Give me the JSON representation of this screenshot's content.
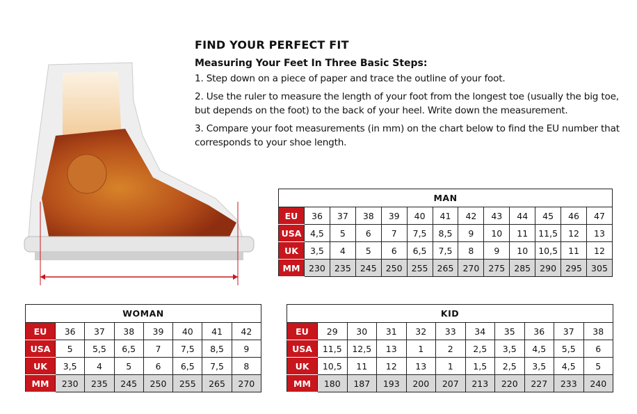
{
  "title": "FIND YOUR PERFECT FIT",
  "subtitle": "Measuring Your Feet In Three Basic Steps:",
  "steps": [
    "1. Step down on a piece of paper and trace the outline of your foot.",
    "2. Use the ruler to measure the length of your foot from the longest toe (usually the big toe, but depends on the foot) to the back of your heel. Write down the measurement.",
    "3. Compare your foot measurements (in mm) on the chart below to find the EU number that corresponds to your shoe length."
  ],
  "colors": {
    "label_bg": "#c8161d",
    "mm_row_bg": "#d8d8d8"
  },
  "tables": {
    "man": {
      "title": "MAN",
      "rows": [
        {
          "label": "EU",
          "values": [
            "36",
            "37",
            "38",
            "39",
            "40",
            "41",
            "42",
            "43",
            "44",
            "45",
            "46",
            "47"
          ]
        },
        {
          "label": "USA",
          "values": [
            "4,5",
            "5",
            "6",
            "7",
            "7,5",
            "8,5",
            "9",
            "10",
            "11",
            "11,5",
            "12",
            "13"
          ]
        },
        {
          "label": "UK",
          "values": [
            "3,5",
            "4",
            "5",
            "6",
            "6,5",
            "7,5",
            "8",
            "9",
            "10",
            "10,5",
            "11",
            "12"
          ]
        },
        {
          "label": "MM",
          "values": [
            "230",
            "235",
            "245",
            "250",
            "255",
            "265",
            "270",
            "275",
            "285",
            "290",
            "295",
            "305"
          ]
        }
      ]
    },
    "woman": {
      "title": "WOMAN",
      "rows": [
        {
          "label": "EU",
          "values": [
            "36",
            "37",
            "38",
            "39",
            "40",
            "41",
            "42"
          ]
        },
        {
          "label": "USA",
          "values": [
            "5",
            "5,5",
            "6,5",
            "7",
            "7,5",
            "8,5",
            "9"
          ]
        },
        {
          "label": "UK",
          "values": [
            "3,5",
            "4",
            "5",
            "6",
            "6,5",
            "7,5",
            "8"
          ]
        },
        {
          "label": "MM",
          "values": [
            "230",
            "235",
            "245",
            "250",
            "255",
            "265",
            "270"
          ]
        }
      ]
    },
    "kid": {
      "title": "KID",
      "rows": [
        {
          "label": "EU",
          "values": [
            "29",
            "30",
            "31",
            "32",
            "33",
            "34",
            "35",
            "36",
            "37",
            "38"
          ]
        },
        {
          "label": "USA",
          "values": [
            "11,5",
            "12,5",
            "13",
            "1",
            "2",
            "2,5",
            "3,5",
            "4,5",
            "5,5",
            "6"
          ]
        },
        {
          "label": "UK",
          "values": [
            "10,5",
            "11",
            "12",
            "13",
            "1",
            "1,5",
            "2,5",
            "3,5",
            "4,5",
            "5"
          ]
        },
        {
          "label": "MM",
          "values": [
            "180",
            "187",
            "193",
            "200",
            "207",
            "213",
            "220",
            "227",
            "233",
            "240"
          ]
        }
      ]
    }
  }
}
